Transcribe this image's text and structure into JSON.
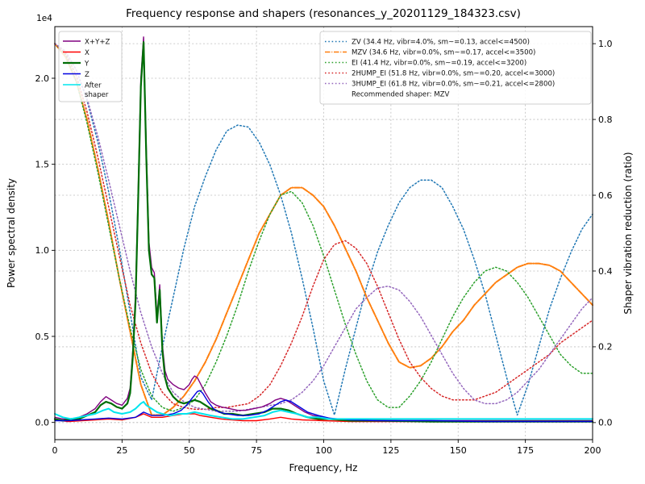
{
  "title": "Frequency response and shapers (resonances_y_20201129_184323.csv)",
  "axes": {
    "x": {
      "label": "Frequency, Hz",
      "min": 0,
      "max": 200,
      "ticks": [
        0,
        25,
        50,
        75,
        100,
        125,
        150,
        175,
        200
      ]
    },
    "y_left": {
      "label": "Power spectral density",
      "offset_text": "1e4",
      "min": -0.1,
      "max": 2.3,
      "ticks": [
        0,
        0.5,
        1.0,
        1.5,
        2.0
      ],
      "tick_labels": [
        "0.0",
        "0.5",
        "1.0",
        "1.5",
        "2.0"
      ]
    },
    "y_right": {
      "label": "Shaper vibration reduction (ratio)",
      "min": -0.045,
      "max": 1.045,
      "ticks": [
        0,
        0.2,
        0.4,
        0.6,
        0.8,
        1.0
      ],
      "tick_labels": [
        "0.0",
        "0.2",
        "0.4",
        "0.6",
        "0.8",
        "1.0"
      ]
    }
  },
  "chart_data": {
    "type": "line",
    "x_unit": "Hz",
    "y_left_unit_scale": "1e4",
    "recommended_note": "Recommended shaper: MZV",
    "recommended_shaper": "MZV",
    "series": [
      {
        "id": "zv",
        "label": "ZV (34.4 Hz, vibr=4.0%, sm~=0.13, accel<=4500)",
        "legend": "right",
        "color": "#1f77b4",
        "style": "dotted",
        "width": 1.5,
        "axis": "right",
        "x0": 0,
        "dx": 4,
        "y": [
          1.0,
          0.98,
          0.93,
          0.85,
          0.74,
          0.61,
          0.46,
          0.29,
          0.12,
          0.06,
          0.2,
          0.33,
          0.46,
          0.57,
          0.65,
          0.72,
          0.77,
          0.785,
          0.78,
          0.74,
          0.68,
          0.6,
          0.5,
          0.38,
          0.25,
          0.11,
          0.02,
          0.14,
          0.25,
          0.36,
          0.45,
          0.52,
          0.58,
          0.62,
          0.64,
          0.64,
          0.62,
          0.57,
          0.51,
          0.43,
          0.34,
          0.23,
          0.12,
          0.02,
          0.1,
          0.2,
          0.3,
          0.38,
          0.45,
          0.51,
          0.55
        ]
      },
      {
        "id": "mzv",
        "label": "MZV (34.6 Hz, vibr=0.0%, sm~=0.17, accel<=3500)",
        "legend": "right",
        "color": "#ff7f0e",
        "style": "dashdot",
        "width": 2,
        "axis": "right",
        "x0": 0,
        "dx": 4,
        "y": [
          1.0,
          0.965,
          0.9,
          0.8,
          0.67,
          0.53,
          0.38,
          0.24,
          0.1,
          0.02,
          0.02,
          0.04,
          0.07,
          0.11,
          0.16,
          0.22,
          0.29,
          0.36,
          0.43,
          0.5,
          0.55,
          0.6,
          0.62,
          0.62,
          0.6,
          0.57,
          0.52,
          0.46,
          0.4,
          0.33,
          0.27,
          0.21,
          0.16,
          0.145,
          0.15,
          0.17,
          0.2,
          0.24,
          0.27,
          0.31,
          0.34,
          0.37,
          0.39,
          0.41,
          0.42,
          0.42,
          0.415,
          0.4,
          0.37,
          0.34,
          0.31
        ]
      },
      {
        "id": "ei",
        "label": "EI (41.4 Hz, vibr=0.0%, sm~=0.19, accel<=3200)",
        "legend": "right",
        "color": "#2ca02c",
        "style": "dotted",
        "width": 1.5,
        "axis": "right",
        "x0": 0,
        "dx": 4,
        "y": [
          1.0,
          0.97,
          0.9,
          0.79,
          0.66,
          0.52,
          0.38,
          0.25,
          0.14,
          0.07,
          0.04,
          0.03,
          0.04,
          0.06,
          0.1,
          0.16,
          0.23,
          0.31,
          0.4,
          0.48,
          0.55,
          0.6,
          0.61,
          0.58,
          0.52,
          0.44,
          0.35,
          0.26,
          0.18,
          0.11,
          0.06,
          0.04,
          0.04,
          0.07,
          0.11,
          0.16,
          0.22,
          0.28,
          0.33,
          0.37,
          0.4,
          0.41,
          0.4,
          0.37,
          0.33,
          0.28,
          0.23,
          0.18,
          0.15,
          0.13,
          0.13
        ]
      },
      {
        "id": "hump2",
        "label": "2HUMP_EI (51.8 Hz, vibr=0.0%, sm~=0.20, accel<=3000)",
        "legend": "right",
        "color": "#d62728",
        "style": "dotted",
        "width": 1.5,
        "axis": "right",
        "x0": 0,
        "dx": 4,
        "y": [
          1.0,
          0.975,
          0.915,
          0.82,
          0.7,
          0.57,
          0.44,
          0.31,
          0.21,
          0.13,
          0.08,
          0.05,
          0.04,
          0.035,
          0.035,
          0.04,
          0.04,
          0.045,
          0.05,
          0.07,
          0.1,
          0.15,
          0.21,
          0.28,
          0.36,
          0.43,
          0.47,
          0.48,
          0.46,
          0.42,
          0.36,
          0.29,
          0.22,
          0.16,
          0.12,
          0.09,
          0.07,
          0.06,
          0.06,
          0.06,
          0.07,
          0.08,
          0.1,
          0.12,
          0.14,
          0.16,
          0.18,
          0.21,
          0.23,
          0.25,
          0.27
        ]
      },
      {
        "id": "hump3",
        "label": "3HUMP_EI (61.8 Hz, vibr=0.0%, sm~=0.21, accel<=2800)",
        "legend": "right",
        "color": "#9467bd",
        "style": "dotted",
        "width": 1.5,
        "axis": "right",
        "x0": 0,
        "dx": 4,
        "y": [
          1.0,
          0.98,
          0.93,
          0.855,
          0.755,
          0.64,
          0.52,
          0.4,
          0.29,
          0.2,
          0.13,
          0.08,
          0.055,
          0.04,
          0.035,
          0.03,
          0.03,
          0.03,
          0.035,
          0.04,
          0.045,
          0.05,
          0.06,
          0.08,
          0.11,
          0.15,
          0.2,
          0.25,
          0.3,
          0.33,
          0.355,
          0.36,
          0.35,
          0.32,
          0.28,
          0.23,
          0.18,
          0.13,
          0.09,
          0.06,
          0.05,
          0.05,
          0.06,
          0.08,
          0.11,
          0.14,
          0.18,
          0.22,
          0.26,
          0.3,
          0.33
        ]
      },
      {
        "id": "xyz",
        "label": "X+Y+Z",
        "legend": "left",
        "color": "#800080",
        "style": "solid",
        "width": 1.4,
        "axis": "left",
        "x": [
          0,
          3,
          6,
          9,
          12,
          15,
          17,
          19,
          21,
          23,
          25,
          27,
          28,
          29,
          30,
          31,
          32,
          33,
          34,
          35,
          36,
          37,
          38,
          39,
          40,
          41,
          42,
          44,
          46,
          48,
          50,
          51,
          52,
          53,
          54,
          55,
          56,
          58,
          60,
          62,
          65,
          68,
          71,
          74,
          77,
          80,
          82,
          84,
          86,
          88,
          90,
          93,
          96,
          100,
          104,
          108,
          112,
          120,
          130,
          140,
          160,
          180,
          200
        ],
        "y": [
          0.03,
          0.02,
          0.02,
          0.03,
          0.05,
          0.08,
          0.12,
          0.15,
          0.13,
          0.11,
          0.1,
          0.14,
          0.2,
          0.42,
          0.75,
          1.35,
          2.0,
          2.24,
          1.6,
          1.05,
          0.9,
          0.87,
          0.62,
          0.8,
          0.45,
          0.3,
          0.25,
          0.22,
          0.2,
          0.19,
          0.22,
          0.25,
          0.27,
          0.26,
          0.23,
          0.2,
          0.17,
          0.12,
          0.1,
          0.09,
          0.08,
          0.07,
          0.07,
          0.08,
          0.09,
          0.11,
          0.13,
          0.14,
          0.13,
          0.11,
          0.09,
          0.06,
          0.04,
          0.03,
          0.02,
          0.02,
          0.015,
          0.01,
          0.01,
          0.01,
          0.01,
          0.01,
          0.01
        ]
      },
      {
        "id": "x",
        "label": "X",
        "legend": "left",
        "color": "#ff0000",
        "style": "solid",
        "width": 1.4,
        "axis": "left",
        "x": [
          0,
          5,
          10,
          15,
          20,
          25,
          30,
          33,
          36,
          40,
          44,
          48,
          50,
          52,
          54,
          58,
          62,
          66,
          70,
          75,
          80,
          84,
          88,
          92,
          100,
          110,
          120,
          140,
          160,
          180,
          200
        ],
        "y": [
          0.015,
          0.005,
          0.01,
          0.015,
          0.02,
          0.015,
          0.03,
          0.05,
          0.03,
          0.03,
          0.04,
          0.05,
          0.05,
          0.05,
          0.04,
          0.03,
          0.02,
          0.015,
          0.01,
          0.01,
          0.02,
          0.03,
          0.02,
          0.015,
          0.01,
          0.005,
          0.005,
          0.005,
          0.005,
          0.005,
          0.005
        ]
      },
      {
        "id": "y",
        "label": "Y",
        "legend": "left",
        "color": "#006e06",
        "style": "solid",
        "width": 2.2,
        "axis": "left",
        "x": [
          0,
          3,
          6,
          9,
          12,
          15,
          17,
          19,
          21,
          23,
          25,
          27,
          28,
          29,
          30,
          31,
          32,
          33,
          34,
          35,
          36,
          37,
          38,
          39,
          40,
          41,
          42,
          44,
          46,
          48,
          50,
          52,
          54,
          56,
          58,
          60,
          63,
          66,
          70,
          74,
          78,
          81,
          84,
          87,
          90,
          94,
          98,
          102,
          106,
          110,
          120,
          140,
          160,
          180,
          200
        ],
        "y": [
          0.02,
          0.01,
          0.02,
          0.02,
          0.04,
          0.06,
          0.1,
          0.12,
          0.11,
          0.09,
          0.08,
          0.11,
          0.17,
          0.38,
          0.7,
          1.3,
          1.95,
          2.21,
          1.55,
          1.0,
          0.86,
          0.84,
          0.58,
          0.77,
          0.42,
          0.26,
          0.2,
          0.15,
          0.12,
          0.11,
          0.12,
          0.13,
          0.12,
          0.1,
          0.08,
          0.07,
          0.05,
          0.05,
          0.04,
          0.05,
          0.06,
          0.08,
          0.08,
          0.07,
          0.05,
          0.03,
          0.02,
          0.02,
          0.015,
          0.01,
          0.01,
          0.005,
          0.005,
          0.005,
          0.005
        ]
      },
      {
        "id": "z",
        "label": "Z",
        "legend": "left",
        "color": "#0000e0",
        "style": "solid",
        "width": 1.4,
        "axis": "left",
        "x": [
          0,
          5,
          10,
          15,
          20,
          25,
          30,
          33,
          36,
          40,
          44,
          47,
          49,
          51,
          53,
          54,
          55,
          57,
          59,
          61,
          64,
          68,
          72,
          76,
          79,
          82,
          84,
          86,
          88,
          91,
          94,
          98,
          102,
          106,
          110,
          120,
          140,
          160,
          180,
          200
        ],
        "y": [
          0.01,
          0.01,
          0.015,
          0.02,
          0.025,
          0.02,
          0.03,
          0.06,
          0.04,
          0.04,
          0.05,
          0.07,
          0.1,
          0.14,
          0.18,
          0.185,
          0.17,
          0.12,
          0.08,
          0.06,
          0.05,
          0.04,
          0.04,
          0.05,
          0.07,
          0.1,
          0.12,
          0.13,
          0.12,
          0.09,
          0.06,
          0.04,
          0.025,
          0.02,
          0.015,
          0.01,
          0.01,
          0.005,
          0.005,
          0.005
        ]
      },
      {
        "id": "after",
        "label": "After\nshaper",
        "legend": "left",
        "color": "#00e5ee",
        "style": "solid",
        "width": 2,
        "axis": "left",
        "x": [
          0,
          3,
          6,
          9,
          12,
          15,
          18,
          20,
          22,
          25,
          28,
          30,
          32,
          33,
          34,
          36,
          38,
          40,
          43,
          46,
          49,
          52,
          55,
          58,
          62,
          66,
          70,
          74,
          78,
          81,
          84,
          87,
          90,
          94,
          98,
          102,
          106,
          110,
          120,
          140,
          160,
          180,
          200
        ],
        "y": [
          0.05,
          0.03,
          0.02,
          0.03,
          0.04,
          0.05,
          0.07,
          0.08,
          0.06,
          0.05,
          0.06,
          0.08,
          0.11,
          0.12,
          0.1,
          0.08,
          0.06,
          0.05,
          0.04,
          0.05,
          0.05,
          0.06,
          0.05,
          0.04,
          0.03,
          0.02,
          0.02,
          0.03,
          0.04,
          0.06,
          0.07,
          0.06,
          0.05,
          0.03,
          0.03,
          0.02,
          0.02,
          0.02,
          0.02,
          0.02,
          0.02,
          0.02,
          0.02
        ]
      }
    ]
  }
}
